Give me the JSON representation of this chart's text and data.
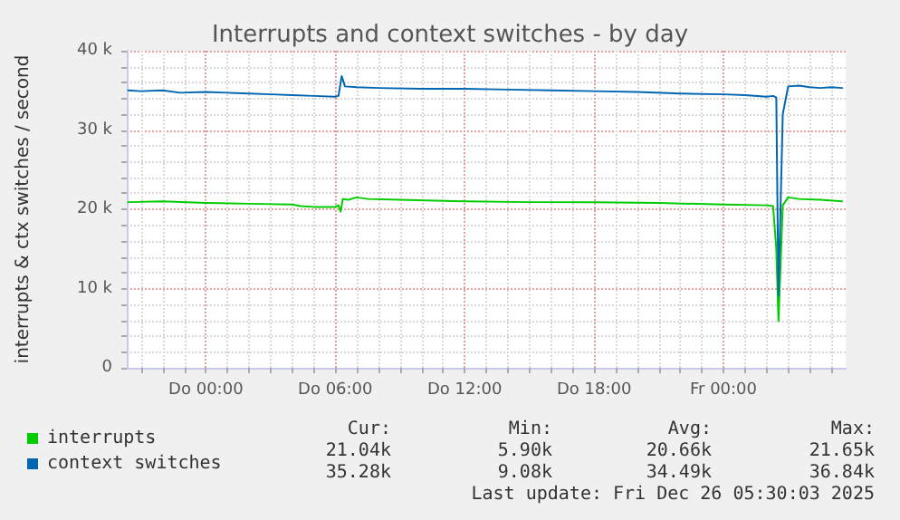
{
  "chart_data": {
    "type": "line",
    "title": "Interrupts and context switches - by day",
    "ylabel": "interrupts & ctx switches / second",
    "xlim": [
      "2025-12-24T20:20",
      "2025-12-26T05:40"
    ],
    "xticks": [
      {
        "value": "2025-12-24T21:00",
        "label": null
      },
      {
        "value": "2025-12-24T22:00",
        "label": null
      },
      {
        "value": "2025-12-24T23:00",
        "label": null
      },
      {
        "value": "2025-12-25T00:00",
        "label": "Do 00:00"
      },
      {
        "value": "2025-12-25T01:00",
        "label": null
      },
      {
        "value": "2025-12-25T02:00",
        "label": null
      },
      {
        "value": "2025-12-25T03:00",
        "label": null
      },
      {
        "value": "2025-12-25T04:00",
        "label": null
      },
      {
        "value": "2025-12-25T05:00",
        "label": null
      },
      {
        "value": "2025-12-25T06:00",
        "label": "Do 06:00"
      },
      {
        "value": "2025-12-25T07:00",
        "label": null
      },
      {
        "value": "2025-12-25T08:00",
        "label": null
      },
      {
        "value": "2025-12-25T09:00",
        "label": null
      },
      {
        "value": "2025-12-25T10:00",
        "label": null
      },
      {
        "value": "2025-12-25T11:00",
        "label": null
      },
      {
        "value": "2025-12-25T12:00",
        "label": "Do 12:00"
      },
      {
        "value": "2025-12-25T13:00",
        "label": null
      },
      {
        "value": "2025-12-25T14:00",
        "label": null
      },
      {
        "value": "2025-12-25T15:00",
        "label": null
      },
      {
        "value": "2025-12-25T16:00",
        "label": null
      },
      {
        "value": "2025-12-25T17:00",
        "label": null
      },
      {
        "value": "2025-12-25T18:00",
        "label": "Do 18:00"
      },
      {
        "value": "2025-12-25T19:00",
        "label": null
      },
      {
        "value": "2025-12-25T20:00",
        "label": null
      },
      {
        "value": "2025-12-25T21:00",
        "label": null
      },
      {
        "value": "2025-12-25T22:00",
        "label": null
      },
      {
        "value": "2025-12-25T23:00",
        "label": null
      },
      {
        "value": "2025-12-26T00:00",
        "label": "Fr 00:00"
      },
      {
        "value": "2025-12-26T01:00",
        "label": null
      },
      {
        "value": "2025-12-26T02:00",
        "label": null
      },
      {
        "value": "2025-12-26T03:00",
        "label": null
      },
      {
        "value": "2025-12-26T04:00",
        "label": null
      },
      {
        "value": "2025-12-26T05:00",
        "label": null
      }
    ],
    "ylim": [
      0,
      40000
    ],
    "yticks": [
      {
        "value": 0,
        "label": "0"
      },
      {
        "value": 2000,
        "label": null
      },
      {
        "value": 4000,
        "label": null
      },
      {
        "value": 6000,
        "label": null
      },
      {
        "value": 8000,
        "label": null
      },
      {
        "value": 10000,
        "label": "10 k"
      },
      {
        "value": 12000,
        "label": null
      },
      {
        "value": 14000,
        "label": null
      },
      {
        "value": 16000,
        "label": null
      },
      {
        "value": 18000,
        "label": null
      },
      {
        "value": 20000,
        "label": "20 k"
      },
      {
        "value": 22000,
        "label": null
      },
      {
        "value": 24000,
        "label": null
      },
      {
        "value": 26000,
        "label": null
      },
      {
        "value": 28000,
        "label": null
      },
      {
        "value": 30000,
        "label": "30 k"
      },
      {
        "value": 32000,
        "label": null
      },
      {
        "value": 34000,
        "label": null
      },
      {
        "value": 36000,
        "label": null
      },
      {
        "value": 38000,
        "label": null
      },
      {
        "value": 40000,
        "label": "40 k"
      }
    ],
    "grid": true,
    "legend": "bottom left",
    "marker": "none",
    "line_style": "solid",
    "series": [
      {
        "name": "interrupts",
        "color": "#00cc00",
        "x": [
          "2025-12-24T20:24",
          "2025-12-24T22:00",
          "2025-12-25T00:00",
          "2025-12-25T02:00",
          "2025-12-25T04:00",
          "2025-12-25T04:24",
          "2025-12-25T05:00",
          "2025-12-25T06:00",
          "2025-12-25T06:09",
          "2025-12-25T06:15",
          "2025-12-25T06:21",
          "2025-12-25T06:36",
          "2025-12-25T07:00",
          "2025-12-25T07:30",
          "2025-12-25T09:00",
          "2025-12-25T12:00",
          "2025-12-25T15:00",
          "2025-12-25T18:00",
          "2025-12-25T21:00",
          "2025-12-26T00:00",
          "2025-12-26T02:00",
          "2025-12-26T02:18",
          "2025-12-26T02:27",
          "2025-12-26T02:33",
          "2025-12-26T02:45",
          "2025-12-26T03:00",
          "2025-12-26T03:30",
          "2025-12-26T04:30",
          "2025-12-26T05:30"
        ],
        "values": [
          20900,
          21000,
          20800,
          20700,
          20600,
          20400,
          20300,
          20300,
          20500,
          19700,
          21300,
          21200,
          21500,
          21300,
          21200,
          21000,
          20900,
          20900,
          20800,
          20600,
          20500,
          20400,
          15000,
          5900,
          20500,
          21500,
          21300,
          21200,
          21000
        ]
      },
      {
        "name": "context switches",
        "color": "#0066b3",
        "x": [
          "2025-12-24T20:24",
          "2025-12-24T21:00",
          "2025-12-24T22:00",
          "2025-12-24T22:48",
          "2025-12-25T00:00",
          "2025-12-25T01:00",
          "2025-12-25T02:00",
          "2025-12-25T03:00",
          "2025-12-25T04:00",
          "2025-12-25T05:00",
          "2025-12-25T06:00",
          "2025-12-25T06:09",
          "2025-12-25T06:18",
          "2025-12-25T06:27",
          "2025-12-25T07:00",
          "2025-12-25T08:00",
          "2025-12-25T10:00",
          "2025-12-25T12:00",
          "2025-12-25T14:00",
          "2025-12-25T16:00",
          "2025-12-25T18:00",
          "2025-12-25T20:00",
          "2025-12-25T22:00",
          "2025-12-26T00:00",
          "2025-12-26T01:00",
          "2025-12-26T02:00",
          "2025-12-26T02:18",
          "2025-12-26T02:27",
          "2025-12-26T02:33",
          "2025-12-26T02:45",
          "2025-12-26T03:00",
          "2025-12-26T03:30",
          "2025-12-26T04:00",
          "2025-12-26T04:30",
          "2025-12-26T05:00",
          "2025-12-26T05:30"
        ],
        "values": [
          35000,
          34900,
          35000,
          34700,
          34800,
          34700,
          34600,
          34500,
          34400,
          34300,
          34200,
          34300,
          36800,
          35500,
          35400,
          35300,
          35200,
          35200,
          35100,
          35000,
          34900,
          34800,
          34600,
          34500,
          34400,
          34200,
          34300,
          34100,
          9100,
          32000,
          35500,
          35600,
          35400,
          35300,
          35400,
          35300
        ]
      }
    ],
    "annotations": [
      "Cur:",
      "Min:",
      "Avg:",
      "Max:",
      "21.04k",
      "5.90k",
      "20.66k",
      "21.65k",
      "35.28k",
      "9.08k",
      "34.49k",
      "36.84k",
      "Last update: Fri Dec 26 05:30:03 2025"
    ]
  }
}
